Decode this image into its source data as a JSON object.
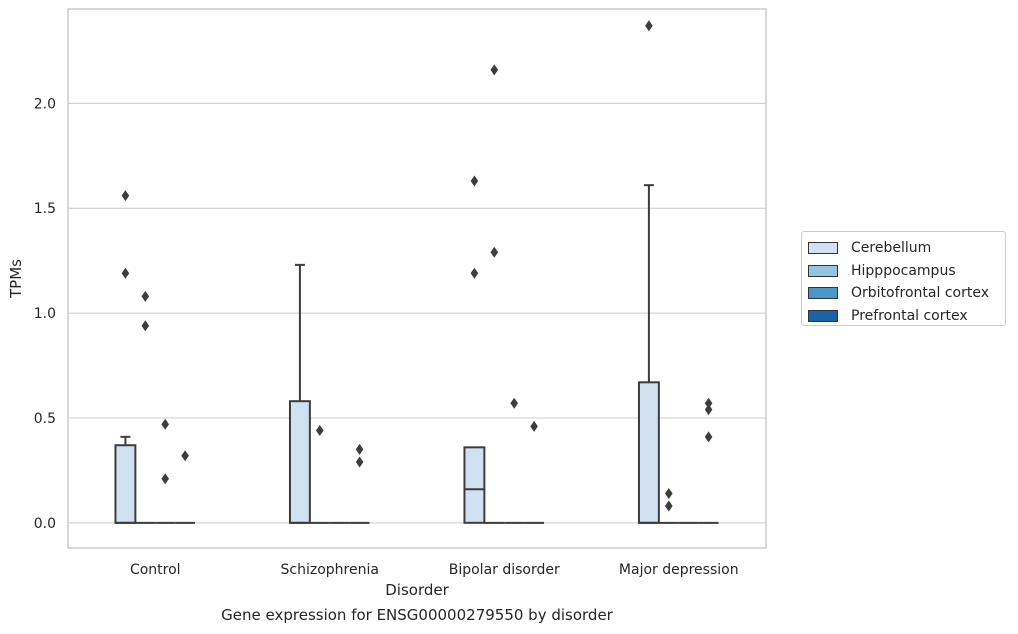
{
  "caption": "Gene expression for ENSG00000279550 by disorder",
  "chart_data": {
    "type": "box",
    "xlabel": "Disorder",
    "ylabel": "TPMs",
    "categories": [
      "Control",
      "Schizophrenia",
      "Bipolar disorder",
      "Major depression"
    ],
    "ylim": [
      -0.12,
      2.45
    ],
    "yticks": [
      0.0,
      0.5,
      1.0,
      1.5,
      2.0
    ],
    "ytick_labels": [
      "0.0",
      "0.5",
      "1.0",
      "1.5",
      "2.0"
    ],
    "grid": true,
    "legend_position": "right",
    "series": [
      {
        "name": "Cerebellum",
        "color": "#d0e1f2",
        "boxes": [
          {
            "category": "Control",
            "min": 0.0,
            "q1": 0.0,
            "median": 0.0,
            "q3": 0.37,
            "max": 0.41,
            "outliers": [
              1.19,
              1.56
            ]
          },
          {
            "category": "Schizophrenia",
            "min": 0.0,
            "q1": 0.0,
            "median": 0.0,
            "q3": 0.58,
            "max": 1.23,
            "outliers": []
          },
          {
            "category": "Bipolar disorder",
            "min": 0.0,
            "q1": 0.0,
            "median": 0.16,
            "q3": 0.36,
            "max": 0.36,
            "outliers": [
              1.19,
              1.63
            ]
          },
          {
            "category": "Major depression",
            "min": 0.0,
            "q1": 0.0,
            "median": 0.0,
            "q3": 0.67,
            "max": 1.61,
            "outliers": [
              2.37
            ]
          }
        ]
      },
      {
        "name": "Hipppocampus",
        "color": "#94c4df",
        "boxes": [
          {
            "category": "Control",
            "min": 0.0,
            "q1": 0.0,
            "median": 0.0,
            "q3": 0.0,
            "max": 0.0,
            "outliers": [
              0.94,
              1.08
            ]
          },
          {
            "category": "Schizophrenia",
            "min": 0.0,
            "q1": 0.0,
            "median": 0.0,
            "q3": 0.0,
            "max": 0.0,
            "outliers": [
              0.44
            ]
          },
          {
            "category": "Bipolar disorder",
            "min": 0.0,
            "q1": 0.0,
            "median": 0.0,
            "q3": 0.0,
            "max": 0.0,
            "outliers": [
              1.29,
              2.16
            ]
          },
          {
            "category": "Major depression",
            "min": 0.0,
            "q1": 0.0,
            "median": 0.0,
            "q3": 0.0,
            "max": 0.0,
            "outliers": [
              0.08,
              0.14
            ]
          }
        ]
      },
      {
        "name": "Orbitofrontal cortex",
        "color": "#4a98c9",
        "boxes": [
          {
            "category": "Control",
            "min": 0.0,
            "q1": 0.0,
            "median": 0.0,
            "q3": 0.0,
            "max": 0.0,
            "outliers": [
              0.21,
              0.47
            ]
          },
          {
            "category": "Schizophrenia",
            "min": 0.0,
            "q1": 0.0,
            "median": 0.0,
            "q3": 0.0,
            "max": 0.0,
            "outliers": []
          },
          {
            "category": "Bipolar disorder",
            "min": 0.0,
            "q1": 0.0,
            "median": 0.0,
            "q3": 0.0,
            "max": 0.0,
            "outliers": [
              0.57
            ]
          },
          {
            "category": "Major depression",
            "min": 0.0,
            "q1": 0.0,
            "median": 0.0,
            "q3": 0.0,
            "max": 0.0,
            "outliers": []
          }
        ]
      },
      {
        "name": "Prefrontal cortex",
        "color": "#1764ab",
        "boxes": [
          {
            "category": "Control",
            "min": 0.0,
            "q1": 0.0,
            "median": 0.0,
            "q3": 0.0,
            "max": 0.0,
            "outliers": [
              0.32
            ]
          },
          {
            "category": "Schizophrenia",
            "min": 0.0,
            "q1": 0.0,
            "median": 0.0,
            "q3": 0.0,
            "max": 0.0,
            "outliers": [
              0.29,
              0.35
            ]
          },
          {
            "category": "Bipolar disorder",
            "min": 0.0,
            "q1": 0.0,
            "median": 0.0,
            "q3": 0.0,
            "max": 0.0,
            "outliers": [
              0.46
            ]
          },
          {
            "category": "Major depression",
            "min": 0.0,
            "q1": 0.0,
            "median": 0.0,
            "q3": 0.0,
            "max": 0.0,
            "outliers": [
              0.41,
              0.54,
              0.57
            ]
          }
        ]
      }
    ]
  }
}
